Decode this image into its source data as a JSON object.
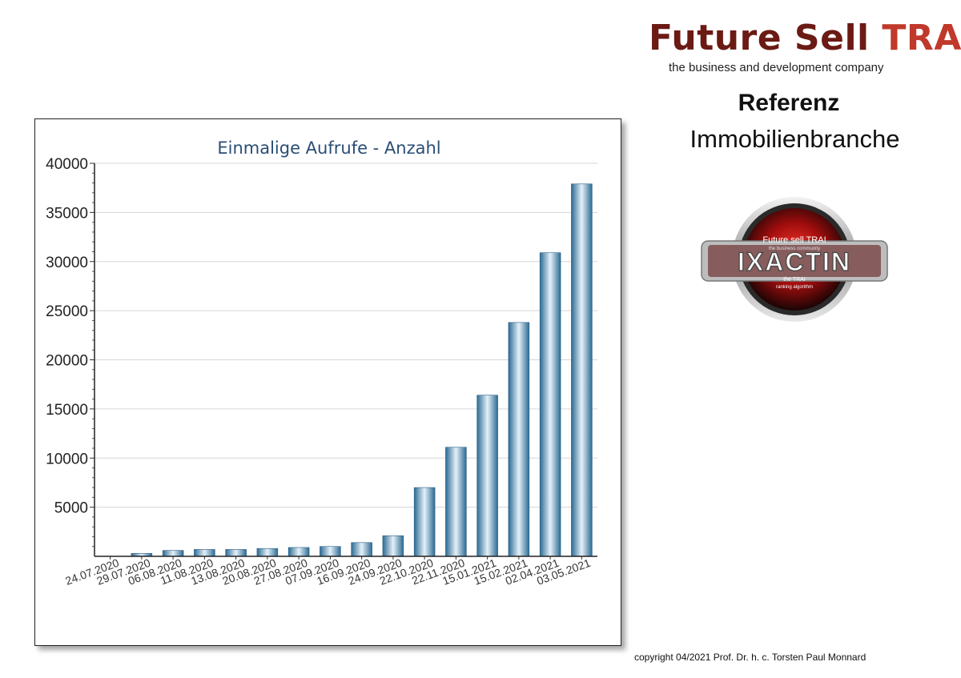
{
  "brand": {
    "name_main": "Future Sell ",
    "name_accent": "TRAI",
    "tagline": "the business and development company"
  },
  "reference": {
    "title": "Referenz",
    "subtitle": "Immobilienbranche"
  },
  "logo": {
    "brand": "Future sell TRAI",
    "community": "the business community",
    "word": "IXACTIN",
    "line1": "the TRAI",
    "line2": "ranking algorithm"
  },
  "copyright": "copyright 04/2021 Prof. Dr. h. c. Torsten Paul Monnard",
  "colors": {
    "bar_dark": "#2c6a93",
    "bar_light": "#e4f1f9",
    "title": "#2a4e75",
    "brand_dark": "#6b1a14",
    "brand_accent": "#c0392b"
  },
  "chart_data": {
    "type": "bar",
    "title": "Einmalige Aufrufe - Anzahl",
    "xlabel": "",
    "ylabel": "",
    "ylim": [
      0,
      40000
    ],
    "yticks": [
      5000,
      10000,
      15000,
      20000,
      25000,
      30000,
      35000,
      40000
    ],
    "grid": true,
    "categories": [
      "24.07.2020",
      "29.07.2020",
      "06.08.2020",
      "11.08.2020",
      "13.08.2020",
      "20.08.2020",
      "27.08.2020",
      "07.09.2020",
      "16.09.2020",
      "24.09.2020",
      "22.10.2020",
      "22.11.2020",
      "15.01.2021",
      "15.02.2021",
      "02.04.2021",
      "03.05.2021"
    ],
    "values": [
      0,
      300,
      600,
      700,
      700,
      800,
      900,
      1000,
      1400,
      2100,
      7000,
      11100,
      16400,
      23800,
      30900,
      37900
    ]
  }
}
